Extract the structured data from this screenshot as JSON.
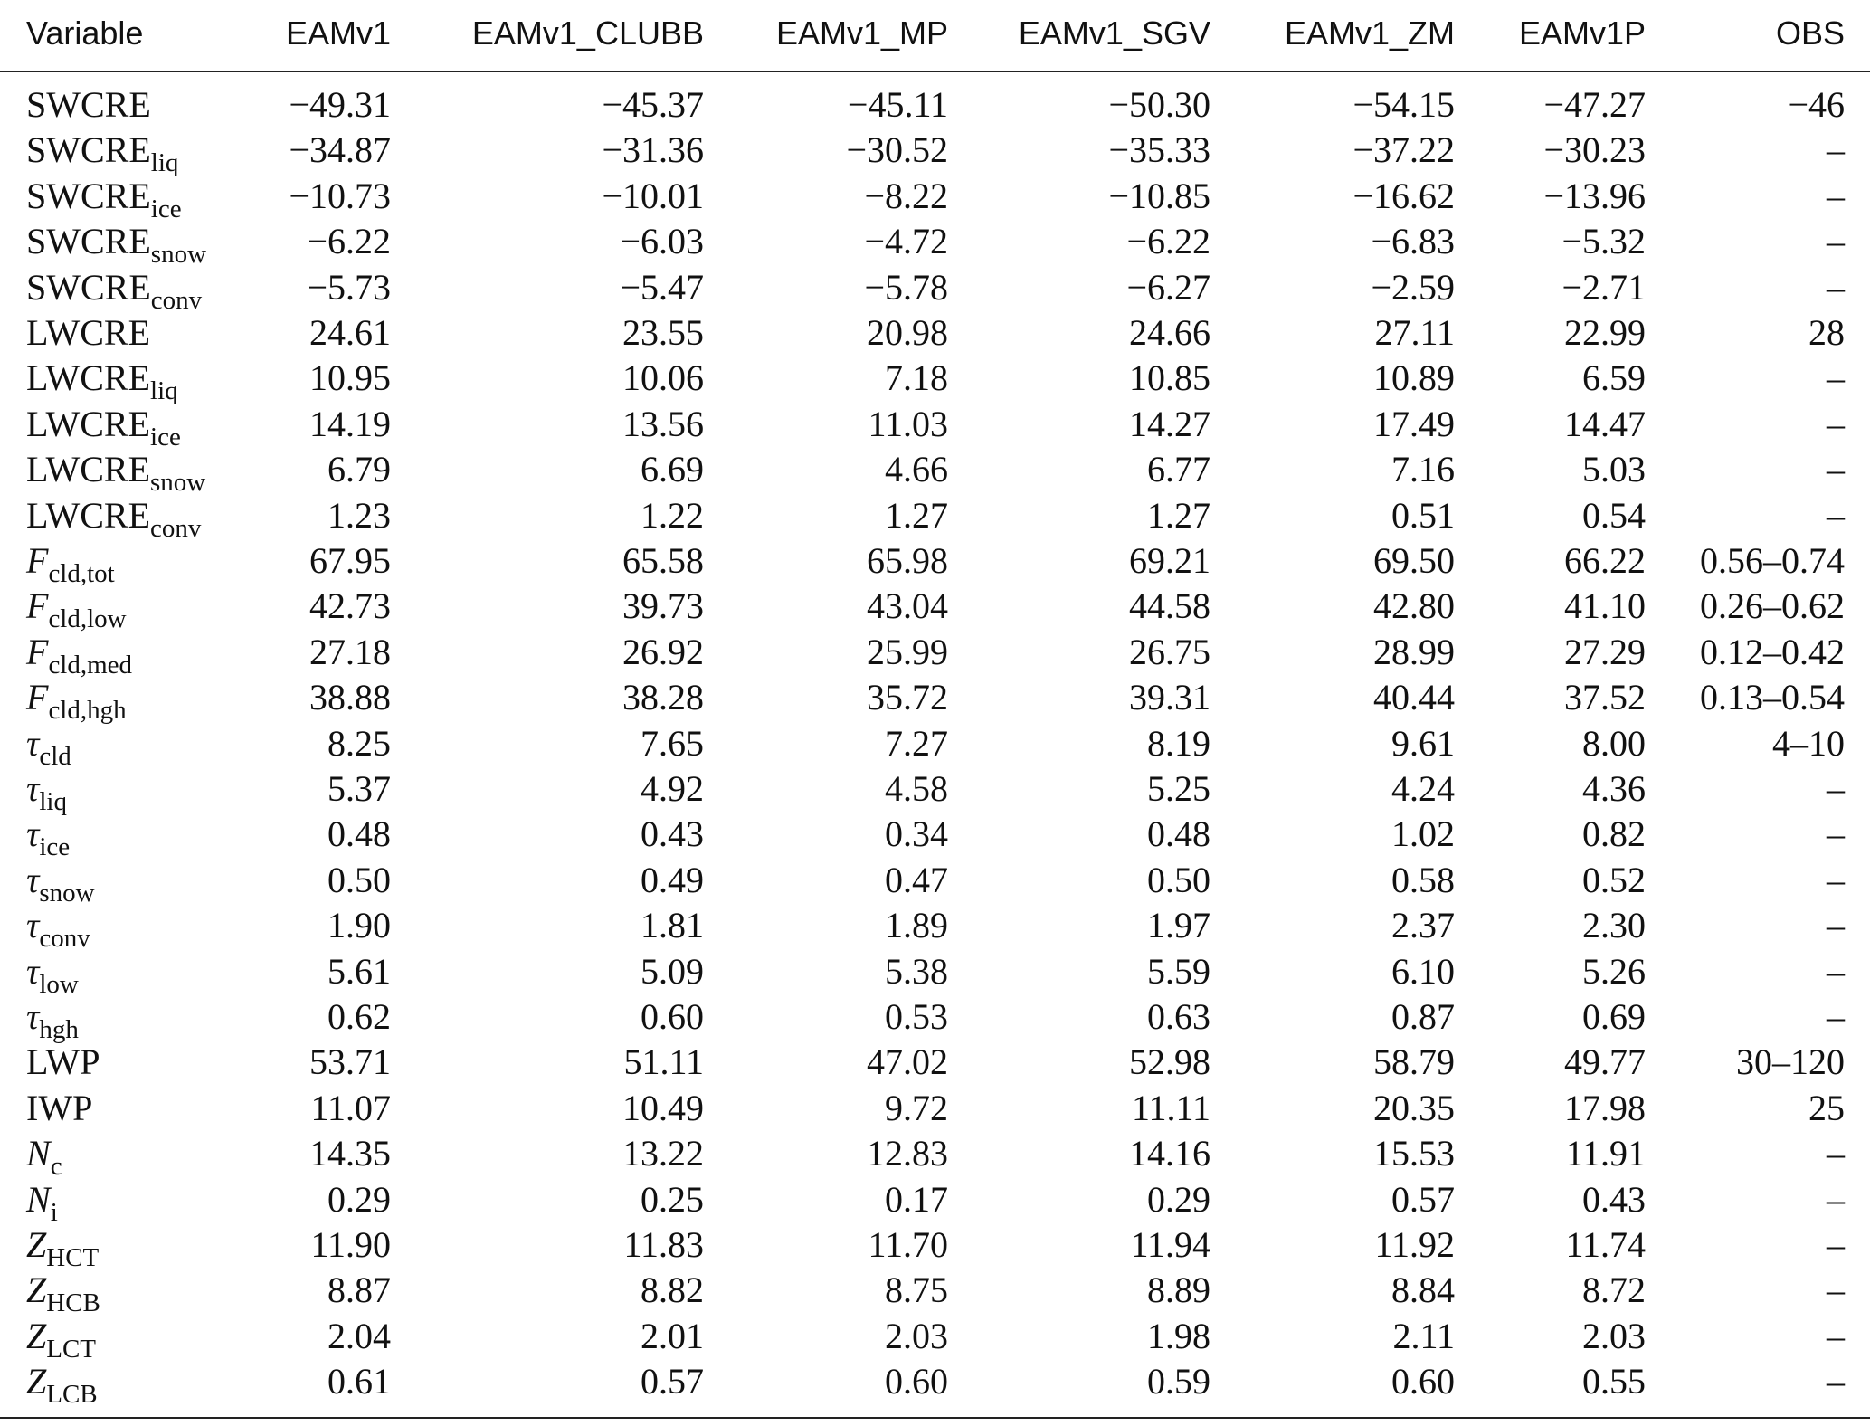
{
  "table": {
    "header": [
      "Variable",
      "EAMv1",
      "EAMv1_CLUBB",
      "EAMv1_MP",
      "EAMv1_SGV",
      "EAMv1_ZM",
      "EAMv1P",
      "OBS"
    ],
    "rows": [
      {
        "variable": {
          "base": "SWCRE"
        },
        "values": [
          "−49.31",
          "−45.37",
          "−45.11",
          "−50.30",
          "−54.15",
          "−47.27",
          "−46"
        ]
      },
      {
        "variable": {
          "base": "SWCRE",
          "sub": "liq"
        },
        "values": [
          "−34.87",
          "−31.36",
          "−30.52",
          "−35.33",
          "−37.22",
          "−30.23",
          "–"
        ]
      },
      {
        "variable": {
          "base": "SWCRE",
          "sub": "ice"
        },
        "values": [
          "−10.73",
          "−10.01",
          "−8.22",
          "−10.85",
          "−16.62",
          "−13.96",
          "–"
        ]
      },
      {
        "variable": {
          "base": "SWCRE",
          "sub": "snow"
        },
        "values": [
          "−6.22",
          "−6.03",
          "−4.72",
          "−6.22",
          "−6.83",
          "−5.32",
          "–"
        ]
      },
      {
        "variable": {
          "base": "SWCRE",
          "sub": "conv"
        },
        "values": [
          "−5.73",
          "−5.47",
          "−5.78",
          "−6.27",
          "−2.59",
          "−2.71",
          "–"
        ]
      },
      {
        "variable": {
          "base": "LWCRE"
        },
        "values": [
          "24.61",
          "23.55",
          "20.98",
          "24.66",
          "27.11",
          "22.99",
          "28"
        ]
      },
      {
        "variable": {
          "base": "LWCRE",
          "sub": "liq"
        },
        "values": [
          "10.95",
          "10.06",
          "7.18",
          "10.85",
          "10.89",
          "6.59",
          "–"
        ]
      },
      {
        "variable": {
          "base": "LWCRE",
          "sub": "ice"
        },
        "values": [
          "14.19",
          "13.56",
          "11.03",
          "14.27",
          "17.49",
          "14.47",
          "–"
        ]
      },
      {
        "variable": {
          "base": "LWCRE",
          "sub": "snow"
        },
        "values": [
          "6.79",
          "6.69",
          "4.66",
          "6.77",
          "7.16",
          "5.03",
          "–"
        ]
      },
      {
        "variable": {
          "base": "LWCRE",
          "sub": "conv"
        },
        "values": [
          "1.23",
          "1.22",
          "1.27",
          "1.27",
          "0.51",
          "0.54",
          "–"
        ]
      },
      {
        "variable": {
          "base": "F",
          "sub": "cld,tot",
          "italic": true
        },
        "values": [
          "67.95",
          "65.58",
          "65.98",
          "69.21",
          "69.50",
          "66.22",
          "0.56–0.74"
        ]
      },
      {
        "variable": {
          "base": "F",
          "sub": "cld,low",
          "italic": true
        },
        "values": [
          "42.73",
          "39.73",
          "43.04",
          "44.58",
          "42.80",
          "41.10",
          "0.26–0.62"
        ]
      },
      {
        "variable": {
          "base": "F",
          "sub": "cld,med",
          "italic": true
        },
        "values": [
          "27.18",
          "26.92",
          "25.99",
          "26.75",
          "28.99",
          "27.29",
          "0.12–0.42"
        ]
      },
      {
        "variable": {
          "base": "F",
          "sub": "cld,hgh",
          "italic": true
        },
        "values": [
          "38.88",
          "38.28",
          "35.72",
          "39.31",
          "40.44",
          "37.52",
          "0.13–0.54"
        ]
      },
      {
        "variable": {
          "base": "τ",
          "sub": "cld",
          "italic": true
        },
        "values": [
          "8.25",
          "7.65",
          "7.27",
          "8.19",
          "9.61",
          "8.00",
          "4–10"
        ]
      },
      {
        "variable": {
          "base": "τ",
          "sub": "liq",
          "italic": true
        },
        "values": [
          "5.37",
          "4.92",
          "4.58",
          "5.25",
          "4.24",
          "4.36",
          "–"
        ]
      },
      {
        "variable": {
          "base": "τ",
          "sub": "ice",
          "italic": true
        },
        "values": [
          "0.48",
          "0.43",
          "0.34",
          "0.48",
          "1.02",
          "0.82",
          "–"
        ]
      },
      {
        "variable": {
          "base": "τ",
          "sub": "snow",
          "italic": true
        },
        "values": [
          "0.50",
          "0.49",
          "0.47",
          "0.50",
          "0.58",
          "0.52",
          "–"
        ]
      },
      {
        "variable": {
          "base": "τ",
          "sub": "conv",
          "italic": true
        },
        "values": [
          "1.90",
          "1.81",
          "1.89",
          "1.97",
          "2.37",
          "2.30",
          "–"
        ]
      },
      {
        "variable": {
          "base": "τ",
          "sub": "low",
          "italic": true
        },
        "values": [
          "5.61",
          "5.09",
          "5.38",
          "5.59",
          "6.10",
          "5.26",
          "–"
        ]
      },
      {
        "variable": {
          "base": "τ",
          "sub": "hgh",
          "italic": true
        },
        "values": [
          "0.62",
          "0.60",
          "0.53",
          "0.63",
          "0.87",
          "0.69",
          "–"
        ]
      },
      {
        "variable": {
          "base": "LWP"
        },
        "values": [
          "53.71",
          "51.11",
          "47.02",
          "52.98",
          "58.79",
          "49.77",
          "30–120"
        ]
      },
      {
        "variable": {
          "base": "IWP"
        },
        "values": [
          "11.07",
          "10.49",
          "9.72",
          "11.11",
          "20.35",
          "17.98",
          "25"
        ]
      },
      {
        "variable": {
          "base": "N",
          "sub": "c",
          "italic": true
        },
        "values": [
          "14.35",
          "13.22",
          "12.83",
          "14.16",
          "15.53",
          "11.91",
          "–"
        ]
      },
      {
        "variable": {
          "base": "N",
          "sub": "i",
          "italic": true
        },
        "values": [
          "0.29",
          "0.25",
          "0.17",
          "0.29",
          "0.57",
          "0.43",
          "–"
        ]
      },
      {
        "variable": {
          "base": "Z",
          "sub": "HCT",
          "italic": true
        },
        "values": [
          "11.90",
          "11.83",
          "11.70",
          "11.94",
          "11.92",
          "11.74",
          "–"
        ]
      },
      {
        "variable": {
          "base": "Z",
          "sub": "HCB",
          "italic": true
        },
        "values": [
          "8.87",
          "8.82",
          "8.75",
          "8.89",
          "8.84",
          "8.72",
          "–"
        ]
      },
      {
        "variable": {
          "base": "Z",
          "sub": "LCT",
          "italic": true
        },
        "values": [
          "2.04",
          "2.01",
          "2.03",
          "1.98",
          "2.11",
          "2.03",
          "–"
        ]
      },
      {
        "variable": {
          "base": "Z",
          "sub": "LCB",
          "italic": true
        },
        "values": [
          "0.61",
          "0.57",
          "0.60",
          "0.59",
          "0.60",
          "0.55",
          "–"
        ]
      }
    ]
  }
}
